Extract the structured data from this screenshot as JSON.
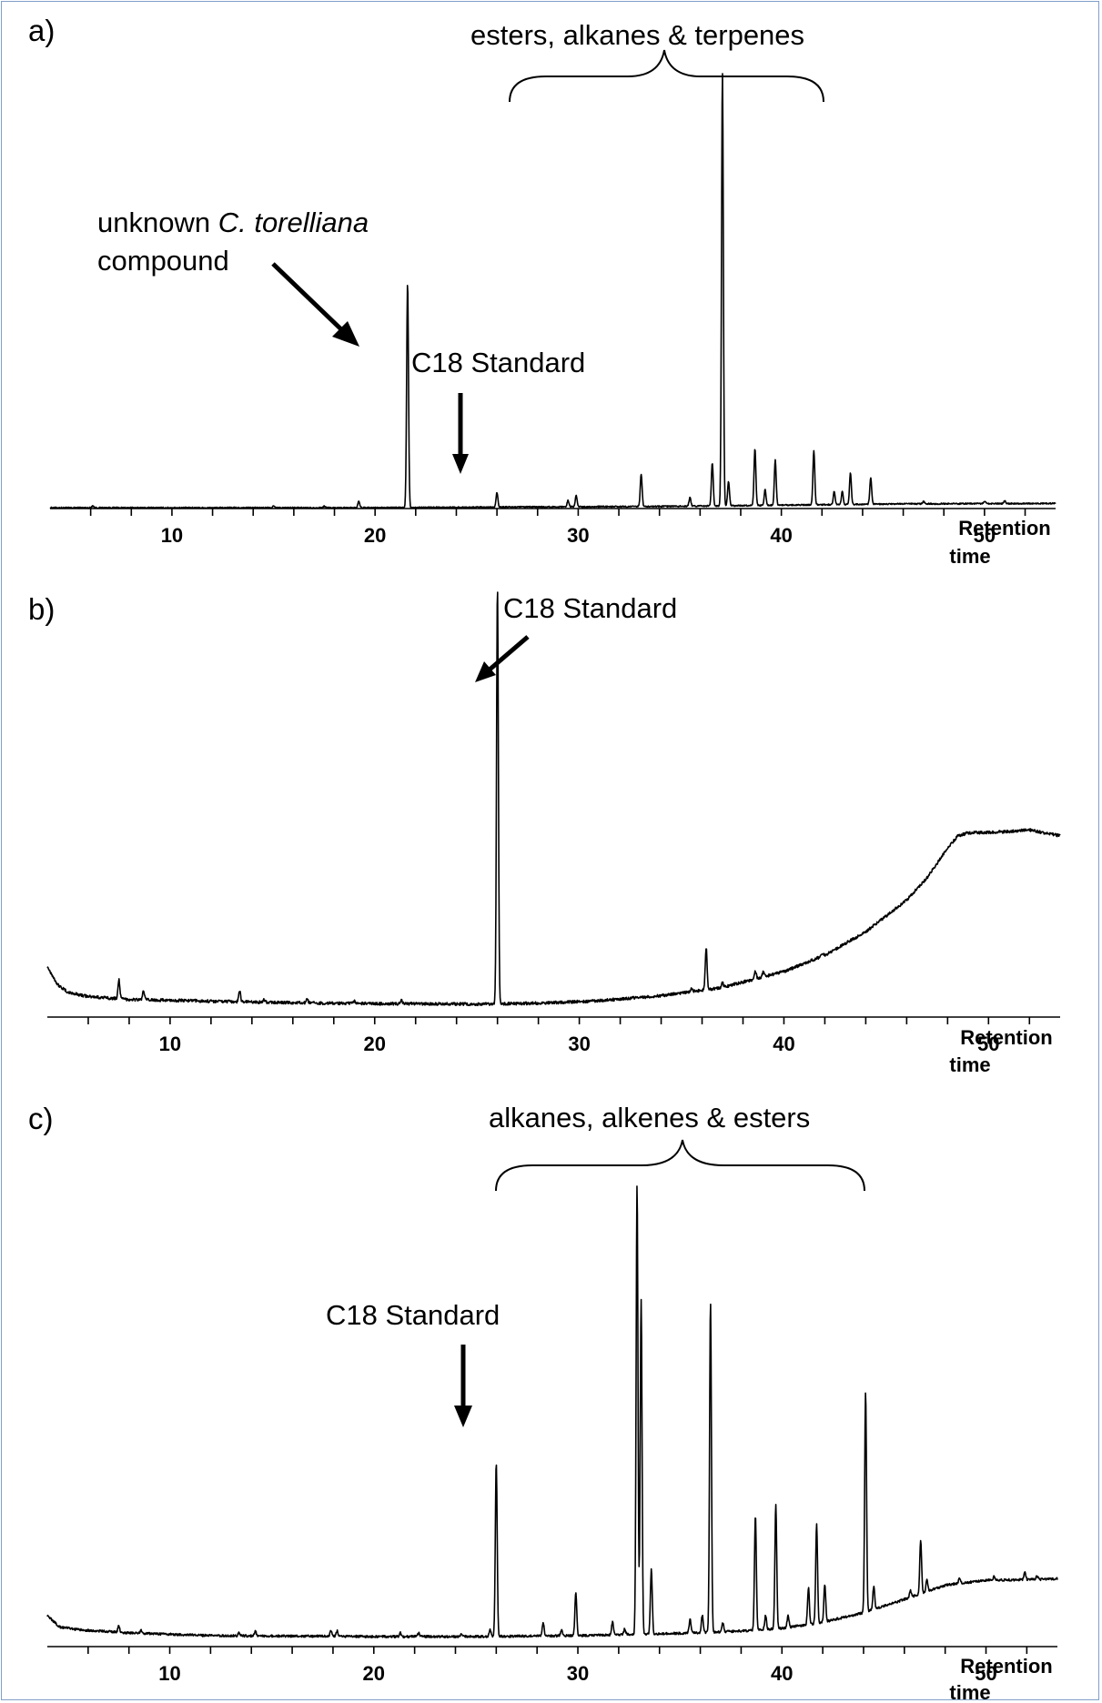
{
  "chart_data": [
    {
      "type": "line",
      "panel_label": "a)",
      "xlabel_line1": "Retention",
      "xlabel_line2": "time",
      "xlim": [
        4,
        53.5
      ],
      "xticks": [
        10,
        20,
        30,
        40,
        50
      ],
      "xtick_labels": [
        "10",
        "20",
        "30",
        "40",
        "50"
      ],
      "ylim": [
        0,
        100
      ],
      "baseline": [
        [
          4,
          0.6
        ],
        [
          20,
          0.6
        ],
        [
          28,
          0.8
        ],
        [
          34,
          0.9
        ],
        [
          40,
          1.2
        ],
        [
          46,
          1.5
        ],
        [
          53.5,
          1.6
        ]
      ],
      "noise": 0.15,
      "peaks": [
        [
          6.1,
          0.5
        ],
        [
          15.0,
          0.4
        ],
        [
          17.5,
          0.4
        ],
        [
          19.2,
          1.5
        ],
        [
          21.6,
          52
        ],
        [
          26.0,
          3.4
        ],
        [
          29.5,
          1.5
        ],
        [
          29.9,
          2.6
        ],
        [
          33.1,
          7.5
        ],
        [
          35.5,
          2.0
        ],
        [
          36.6,
          10
        ],
        [
          37.1,
          100
        ],
        [
          37.4,
          5.5
        ],
        [
          38.7,
          13
        ],
        [
          39.2,
          3.6
        ],
        [
          39.7,
          10.5
        ],
        [
          41.6,
          12.5
        ],
        [
          42.6,
          3
        ],
        [
          43.0,
          3
        ],
        [
          43.4,
          7.2
        ],
        [
          44.4,
          6.2
        ],
        [
          47.0,
          0.5
        ],
        [
          50.0,
          0.6
        ],
        [
          51.0,
          0.6
        ]
      ],
      "annotations": [
        {
          "text_pre": "unknown ",
          "text_italic": "C. torelliana",
          "text_line2": "compound"
        },
        {
          "text": "C18 Standard"
        },
        {
          "text": "esters, alkanes & terpenes"
        }
      ]
    },
    {
      "type": "line",
      "panel_label": "b)",
      "xlabel_line1": "Retention",
      "xlabel_line2": "time",
      "xlim": [
        4,
        53.5
      ],
      "xticks": [
        10,
        20,
        30,
        40,
        50
      ],
      "xtick_labels": [
        "10",
        "20",
        "30",
        "40",
        "50"
      ],
      "ylim": [
        0,
        100
      ],
      "baseline": [
        [
          4,
          9.5
        ],
        [
          4.5,
          5.2
        ],
        [
          5,
          3.3
        ],
        [
          6,
          2.3
        ],
        [
          8,
          1.6
        ],
        [
          12,
          1.2
        ],
        [
          16,
          0.8
        ],
        [
          20,
          0.6
        ],
        [
          25,
          0.5
        ],
        [
          28,
          0.7
        ],
        [
          31,
          1.3
        ],
        [
          34,
          2.5
        ],
        [
          37,
          4.5
        ],
        [
          40,
          8.3
        ],
        [
          42,
          12.2
        ],
        [
          44,
          17.8
        ],
        [
          46,
          25.4
        ],
        [
          47,
          30.8
        ],
        [
          48,
          37.8
        ],
        [
          48.5,
          40.8
        ],
        [
          49,
          41.5
        ],
        [
          51,
          41.8
        ],
        [
          52,
          42.2
        ],
        [
          53.5,
          40.8
        ]
      ],
      "noise": 0.35,
      "peaks": [
        [
          7.5,
          4.6
        ],
        [
          8.7,
          2.2
        ],
        [
          13.4,
          2.6
        ],
        [
          14.6,
          0.6
        ],
        [
          16.7,
          0.8
        ],
        [
          19.0,
          0.6
        ],
        [
          21.3,
          0.9
        ],
        [
          26.0,
          100
        ],
        [
          35.5,
          0.8
        ],
        [
          36.2,
          10
        ],
        [
          37.0,
          1.2
        ],
        [
          38.6,
          2.0
        ],
        [
          39.0,
          1.4
        ],
        [
          41.9,
          0.8
        ]
      ],
      "annotations": [
        {
          "text": "C18 Standard"
        }
      ]
    },
    {
      "type": "line",
      "panel_label": "c)",
      "xlabel_line1": "Retention",
      "xlabel_line2": "time",
      "xlim": [
        4,
        53.5
      ],
      "xticks": [
        10,
        20,
        30,
        40,
        50
      ],
      "xtick_labels": [
        "10",
        "20",
        "30",
        "40",
        "50"
      ],
      "ylim": [
        0,
        100
      ],
      "baseline": [
        [
          4,
          5.2
        ],
        [
          4.6,
          2.7
        ],
        [
          5.5,
          2.1
        ],
        [
          8,
          1.4
        ],
        [
          12,
          0.8
        ],
        [
          16,
          0.7
        ],
        [
          20,
          0.6
        ],
        [
          25,
          0.6
        ],
        [
          30,
          0.8
        ],
        [
          35,
          1.3
        ],
        [
          38,
          1.8
        ],
        [
          40,
          2.4
        ],
        [
          42,
          3.7
        ],
        [
          44,
          5.8
        ],
        [
          46,
          8.7
        ],
        [
          48,
          11.8
        ],
        [
          50,
          12.9
        ],
        [
          52,
          13.0
        ],
        [
          53.5,
          13.2
        ]
      ],
      "noise": 0.25,
      "peaks": [
        [
          7.5,
          1.3
        ],
        [
          8.6,
          0.7
        ],
        [
          13.4,
          0.8
        ],
        [
          14.2,
          1.0
        ],
        [
          17.9,
          1.2
        ],
        [
          18.2,
          1.2
        ],
        [
          21.3,
          0.8
        ],
        [
          22.2,
          0.8
        ],
        [
          24.3,
          0.6
        ],
        [
          25.7,
          1.5
        ],
        [
          26.0,
          38
        ],
        [
          28.3,
          3.0
        ],
        [
          29.2,
          1.4
        ],
        [
          29.9,
          9.5
        ],
        [
          31.7,
          2.9
        ],
        [
          32.3,
          1.3
        ],
        [
          32.9,
          98
        ],
        [
          33.1,
          73
        ],
        [
          33.6,
          14
        ],
        [
          35.5,
          3.0
        ],
        [
          36.1,
          3.8
        ],
        [
          36.5,
          72
        ],
        [
          37.1,
          2.0
        ],
        [
          38.7,
          25
        ],
        [
          39.2,
          3.0
        ],
        [
          39.7,
          27
        ],
        [
          40.3,
          2.5
        ],
        [
          41.3,
          8.0
        ],
        [
          41.7,
          21.5
        ],
        [
          42.1,
          8.3
        ],
        [
          44.1,
          48
        ],
        [
          44.5,
          5.0
        ],
        [
          46.3,
          1.5
        ],
        [
          46.8,
          11.7
        ],
        [
          47.1,
          2.5
        ],
        [
          48.7,
          1.0
        ],
        [
          50.4,
          0.9
        ],
        [
          51.9,
          1.6
        ],
        [
          52.5,
          0.7
        ]
      ],
      "annotations": [
        {
          "text": "C18 Standard"
        },
        {
          "text": "alkanes, alkenes & esters"
        }
      ]
    }
  ]
}
